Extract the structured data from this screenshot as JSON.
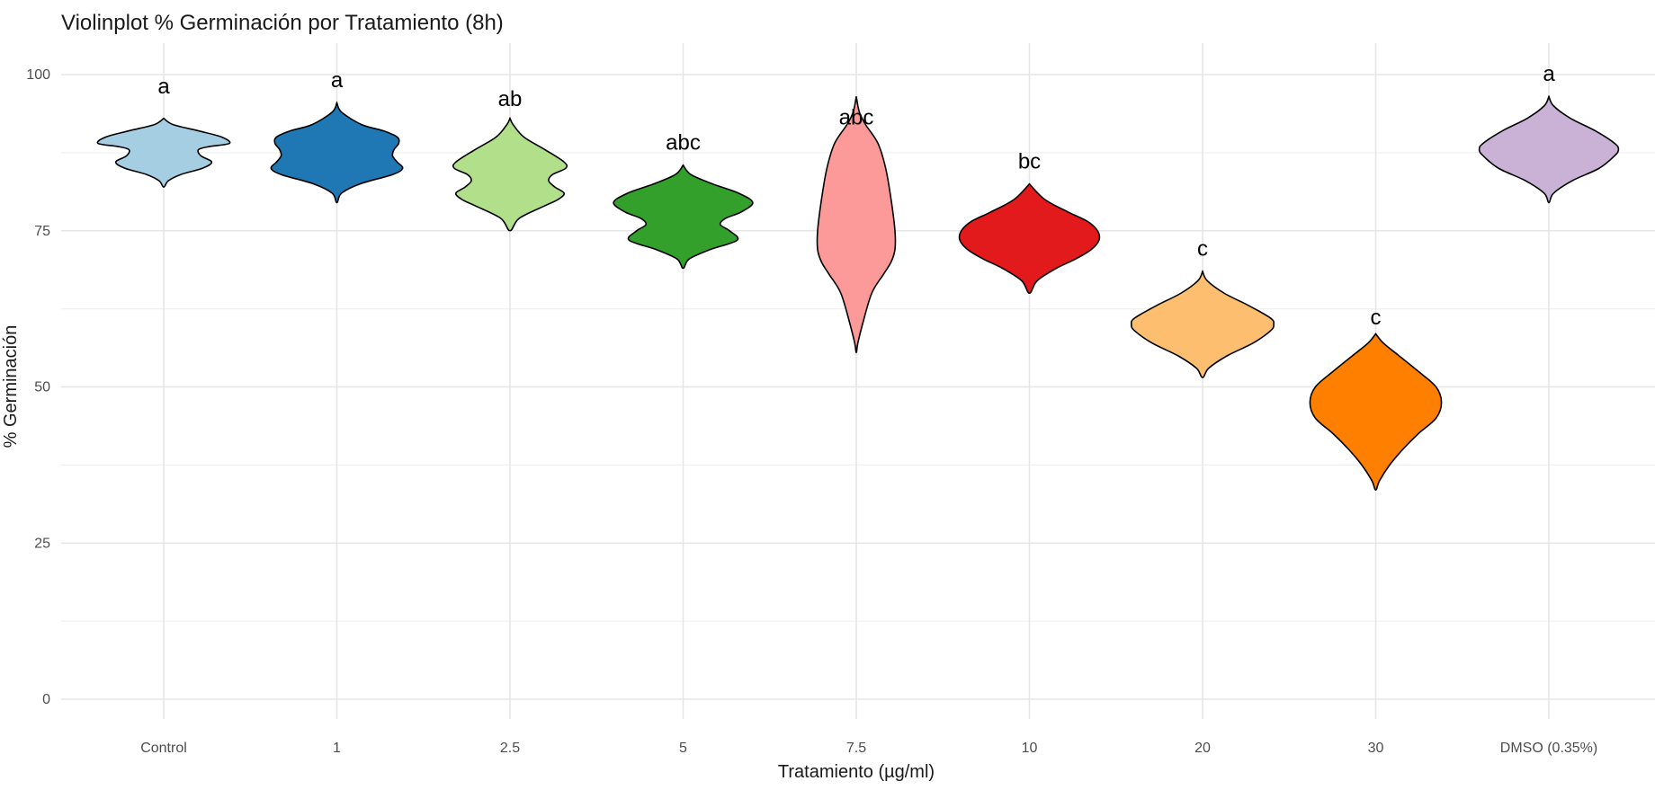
{
  "chart_data": {
    "type": "violin",
    "title": "Violinplot % Germinación por Tratamiento (8h)",
    "xlabel": "Tratamiento (µg/ml)",
    "ylabel": "% Germinación",
    "ylim": [
      0,
      100
    ],
    "yticks": [
      "0",
      "25",
      "50",
      "75",
      "100"
    ],
    "grid": true,
    "legend": "none",
    "categories": [
      "Control",
      "1",
      "2.5",
      "5",
      "7.5",
      "10",
      "20",
      "30",
      "DMSO (0.35%)"
    ],
    "series": [
      {
        "category": "Control",
        "fill": "#A6CEE3",
        "min": 82,
        "max": 93,
        "density": [
          [
            82,
            0
          ],
          [
            83,
            0.06
          ],
          [
            84,
            0.22
          ],
          [
            85,
            0.5
          ],
          [
            86,
            0.62
          ],
          [
            87,
            0.48
          ],
          [
            88,
            0.45
          ],
          [
            88.5,
            0.6
          ],
          [
            89,
            0.85
          ],
          [
            90,
            0.75
          ],
          [
            91,
            0.45
          ],
          [
            92,
            0.12
          ],
          [
            93,
            0
          ]
        ],
        "letter": "a"
      },
      {
        "category": "1",
        "fill": "#1F78B4",
        "min": 79.5,
        "max": 95.5,
        "density": [
          [
            79.5,
            0
          ],
          [
            81,
            0.06
          ],
          [
            82.5,
            0.3
          ],
          [
            84,
            0.72
          ],
          [
            85,
            0.85
          ],
          [
            86,
            0.78
          ],
          [
            87,
            0.72
          ],
          [
            88,
            0.74
          ],
          [
            89,
            0.8
          ],
          [
            90,
            0.78
          ],
          [
            91,
            0.6
          ],
          [
            92,
            0.32
          ],
          [
            94,
            0.06
          ],
          [
            95.5,
            0
          ]
        ],
        "letter": "a"
      },
      {
        "category": "2.5",
        "fill": "#B2DF8A",
        "min": 75,
        "max": 93,
        "density": [
          [
            75,
            0
          ],
          [
            77,
            0.12
          ],
          [
            79,
            0.45
          ],
          [
            80,
            0.62
          ],
          [
            81,
            0.7
          ],
          [
            82,
            0.58
          ],
          [
            83,
            0.5
          ],
          [
            84,
            0.55
          ],
          [
            85,
            0.72
          ],
          [
            86,
            0.7
          ],
          [
            88,
            0.45
          ],
          [
            90,
            0.18
          ],
          [
            92,
            0.04
          ],
          [
            93,
            0
          ]
        ],
        "letter": "ab"
      },
      {
        "category": "5",
        "fill": "#33A02C",
        "min": 69,
        "max": 85.5,
        "density": [
          [
            69,
            0
          ],
          [
            70.5,
            0.08
          ],
          [
            72,
            0.35
          ],
          [
            73.5,
            0.7
          ],
          [
            75,
            0.6
          ],
          [
            76,
            0.48
          ],
          [
            77,
            0.55
          ],
          [
            78,
            0.75
          ],
          [
            79.5,
            0.9
          ],
          [
            81,
            0.72
          ],
          [
            82.5,
            0.38
          ],
          [
            84,
            0.1
          ],
          [
            85.5,
            0
          ]
        ],
        "letter": "abc"
      },
      {
        "category": "7.5",
        "fill": "#FB9A99",
        "min": 55.5,
        "max": 96.5,
        "density": [
          [
            55.5,
            0
          ],
          [
            57,
            0.02
          ],
          [
            60,
            0.08
          ],
          [
            65,
            0.2
          ],
          [
            68,
            0.35
          ],
          [
            70,
            0.45
          ],
          [
            72,
            0.5
          ],
          [
            75,
            0.5
          ],
          [
            80,
            0.45
          ],
          [
            85,
            0.38
          ],
          [
            89,
            0.28
          ],
          [
            92,
            0.12
          ],
          [
            94,
            0.04
          ],
          [
            96.5,
            0
          ]
        ],
        "letter": "abc"
      },
      {
        "category": "10",
        "fill": "#E31A1C",
        "min": 65,
        "max": 82.5,
        "density": [
          [
            65,
            0
          ],
          [
            67,
            0.1
          ],
          [
            69,
            0.35
          ],
          [
            70.5,
            0.6
          ],
          [
            72,
            0.8
          ],
          [
            73.5,
            0.9
          ],
          [
            75,
            0.88
          ],
          [
            76.5,
            0.75
          ],
          [
            78,
            0.5
          ],
          [
            80,
            0.2
          ],
          [
            82.5,
            0
          ]
        ],
        "letter": "bc"
      },
      {
        "category": "20",
        "fill": "#FDBF6F",
        "min": 51.5,
        "max": 68.5,
        "density": [
          [
            51.5,
            0
          ],
          [
            53,
            0.08
          ],
          [
            55,
            0.32
          ],
          [
            57,
            0.65
          ],
          [
            59,
            0.88
          ],
          [
            60,
            0.92
          ],
          [
            61,
            0.88
          ],
          [
            63,
            0.6
          ],
          [
            65,
            0.28
          ],
          [
            67,
            0.06
          ],
          [
            68.5,
            0
          ]
        ],
        "letter": "c"
      },
      {
        "category": "30",
        "fill": "#FF7F00",
        "min": 33.5,
        "max": 58.5,
        "density": [
          [
            33.5,
            0
          ],
          [
            35,
            0.05
          ],
          [
            37.5,
            0.18
          ],
          [
            40,
            0.35
          ],
          [
            42.5,
            0.55
          ],
          [
            45,
            0.78
          ],
          [
            47.5,
            0.85
          ],
          [
            50,
            0.78
          ],
          [
            52.5,
            0.55
          ],
          [
            55,
            0.3
          ],
          [
            57,
            0.1
          ],
          [
            58.5,
            0
          ]
        ],
        "letter": "c"
      },
      {
        "category": "DMSO (0.35%)",
        "fill": "#CAB2D6",
        "min": 79.5,
        "max": 96.5,
        "density": [
          [
            79.5,
            0
          ],
          [
            81,
            0.06
          ],
          [
            83,
            0.3
          ],
          [
            85,
            0.65
          ],
          [
            87,
            0.85
          ],
          [
            88,
            0.9
          ],
          [
            89,
            0.85
          ],
          [
            91,
            0.6
          ],
          [
            93,
            0.28
          ],
          [
            95,
            0.06
          ],
          [
            96.5,
            0
          ]
        ],
        "letter": "a"
      }
    ],
    "letters": [
      {
        "category": "Control",
        "text": "a",
        "y": 97
      },
      {
        "category": "1",
        "text": "a",
        "y": 98
      },
      {
        "category": "2.5",
        "text": "ab",
        "y": 95
      },
      {
        "category": "5",
        "text": "abc",
        "y": 88
      },
      {
        "category": "7.5",
        "text": "abc",
        "y": 92
      },
      {
        "category": "10",
        "text": "bc",
        "y": 85
      },
      {
        "category": "20",
        "text": "c",
        "y": 71
      },
      {
        "category": "30",
        "text": "c",
        "y": 60
      },
      {
        "category": "DMSO (0.35%)",
        "text": "a",
        "y": 99
      }
    ]
  }
}
